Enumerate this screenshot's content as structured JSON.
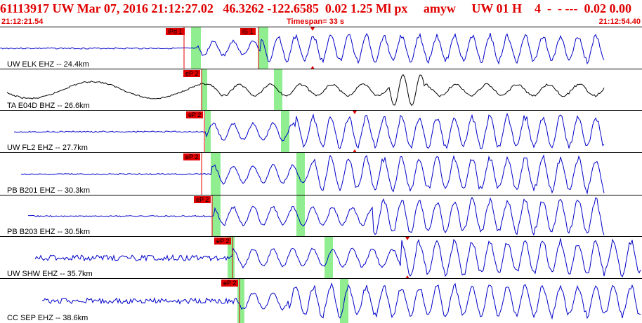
{
  "header": {
    "event_line": "61113917 UW Mar 07, 2016 21:12:27.02   46.3262 -122.6585  0.02 1.25 Ml px     amyw     UW 01 H    4  -  - ---  0.02 0.00",
    "time_start": "21:12:21.54",
    "time_end": "21:12:54.40",
    "timespan": "Timespan=  33 s"
  },
  "colors": {
    "header": "#e00000",
    "trace": "#0000c8",
    "trace_alt": "#000000",
    "pick": "#e00000",
    "window": "#90ee90"
  },
  "traces": [
    {
      "label": "UW ELK EHZ -- 24.4km",
      "picks": [
        "iPd 1",
        "iS 1"
      ]
    },
    {
      "label": "TA E04D BHZ -- 26.6km",
      "picks": [
        "eP 2"
      ]
    },
    {
      "label": "UW FL2 EHZ -- 27.7km",
      "picks": [
        "eP 2"
      ]
    },
    {
      "label": "PB B201 EHZ -- 30.3km",
      "picks": [
        "eP 2"
      ]
    },
    {
      "label": "PB B203 EHZ -- 30.5km",
      "picks": [
        "eP 2"
      ]
    },
    {
      "label": "UW SHW EHZ -- 35.7km",
      "picks": [
        "eP 2"
      ]
    },
    {
      "label": "CC SEP EHZ -- 38.6km",
      "picks": [
        "eP 2"
      ]
    }
  ]
}
